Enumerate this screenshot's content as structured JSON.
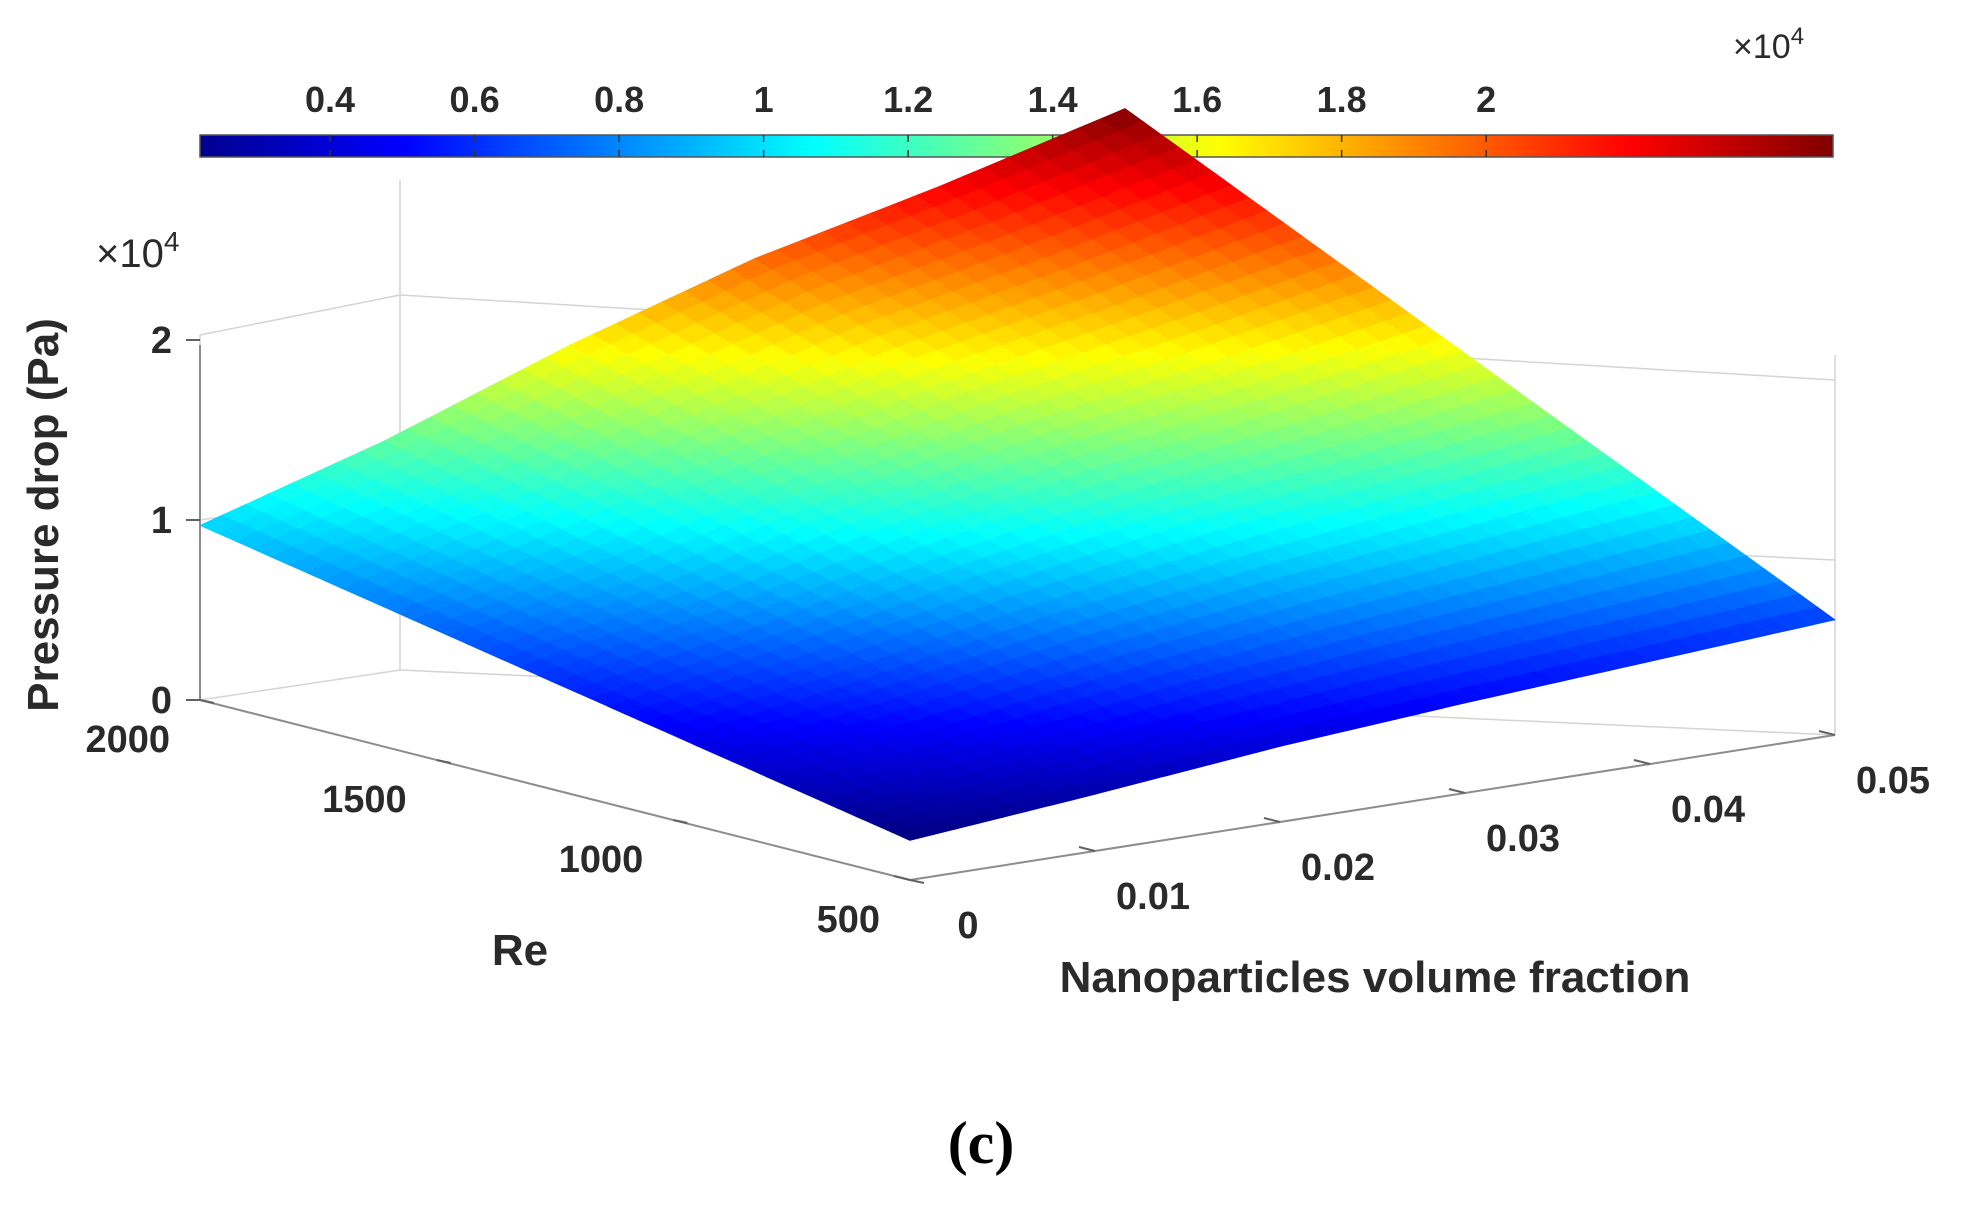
{
  "chart_data": {
    "type": "surface",
    "title": "",
    "xlabel": "Nanoparticles volume fraction",
    "ylabel": "Re",
    "zlabel": "Pressure drop (Pa)",
    "z_multiplier": "×10",
    "z_multiplier_exp": "4",
    "phi": [
      0,
      0.01,
      0.02,
      0.03,
      0.04,
      0.05
    ],
    "re": [
      500,
      2000
    ],
    "z": [
      [
        2200,
        9700
      ],
      [
        3150,
        12800
      ],
      [
        4200,
        16500
      ],
      [
        5000,
        19700
      ],
      [
        5700,
        22100
      ],
      [
        6400,
        24800
      ]
    ],
    "x_ticks": [
      "0",
      "0.01",
      "0.02",
      "0.03",
      "0.04",
      "0.05"
    ],
    "y_ticks": [
      "500",
      "1000",
      "1500",
      "2000"
    ],
    "z_ticks": [
      "0",
      "1",
      "2"
    ],
    "colorbar": {
      "ticks": [
        "0.4",
        "0.6",
        "0.8",
        "1",
        "1.2",
        "1.4",
        "1.6",
        "1.8",
        "2"
      ],
      "multiplier": "×10",
      "multiplier_exp": "4",
      "range": [
        2200,
        24800
      ],
      "colormap": "jet"
    }
  },
  "caption": "(c)"
}
